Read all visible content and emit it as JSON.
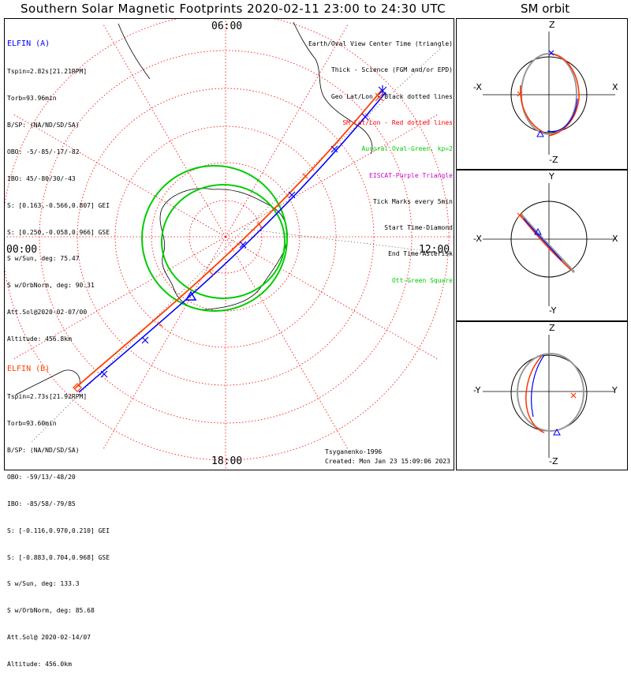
{
  "header": {
    "title": "Southern Solar Magnetic Footprints 2020-02-11 23:00 to 24:30 UTC",
    "orbit_title": "SM orbit"
  },
  "clock_labels": {
    "top": "06:00",
    "left": "00:00",
    "right": "12:00",
    "bottom": "18:00"
  },
  "elfin_a": {
    "name": "ELFIN (A)",
    "color": "#0000ff",
    "lines": [
      "Tspin=2.82s[21.21RPM]",
      "Torb=93.96min",
      "B/SP: (NA/ND/SD/SA)",
      "OBO: -5/-85/-17/-82",
      "IBO: 45/-80/30/-43",
      "S: [0.163,-0.566,0.807] GEI",
      "S: [0.250,-0.058,0.966] GSE",
      "S w/Sun, deg: 75.47",
      "S w/OrbNorm, deg: 90.31",
      "Att.Sol@2020-02-07/00",
      "Altitude: 456.8km"
    ]
  },
  "elfin_b": {
    "name": "ELFIN (B)",
    "color": "#ff4000",
    "lines": [
      "Tspin=2.73s[21.92RPM]",
      "Torb=93.60min",
      "B/SP: (NA/ND/SD/SA)",
      "OBO: -59/13/-48/20",
      "IBO: -85/58/-79/85",
      "S: [-0.116,0.970,0.210] GEI",
      "S: [-0.883,0.704,0.968] GSE",
      "S w/Sun, deg: 133.3",
      "S w/OrbNorm, deg: 85.68",
      "Att.Sol@ 2020-02-14/07",
      "Altitude: 456.0km"
    ]
  },
  "legend": [
    {
      "text": "Earth/Oval View Center Time (triangle)",
      "color": "#000000"
    },
    {
      "text": "Thick - Science (FGM and/or EPD)",
      "color": "#000000"
    },
    {
      "text": "Geo Lat/Lon - Black dotted lines",
      "color": "#000000"
    },
    {
      "text": "SM Lat/Lon - Red dotted lines",
      "color": "#ff0000"
    },
    {
      "text": "Auroral Oval-Green, kp=2",
      "color": "#00cc00"
    },
    {
      "text": "EISCAT-Purple Triangle",
      "color": "#cc00cc"
    },
    {
      "text": "Tick Marks every 5min",
      "color": "#000000"
    },
    {
      "text": "Start Time-Diamond",
      "color": "#000000"
    },
    {
      "text": "End Time-Asterisk",
      "color": "#000000"
    },
    {
      "text": "Ott-Green Square",
      "color": "#00cc00"
    }
  ],
  "credit": {
    "author": "Tsyganenko-1996",
    "created": "Created: Mon Jan 23 15:09:06 2023"
  },
  "orbit_panels": [
    {
      "top": "Z",
      "bottom": "-Z",
      "left": "-X",
      "right": "X"
    },
    {
      "top": "Y",
      "bottom": "-Y",
      "left": "-X",
      "right": "X"
    },
    {
      "top": "Z",
      "bottom": "-Z",
      "left": "-Y",
      "right": "Y"
    }
  ],
  "colors": {
    "a_track": "#0000ff",
    "b_track": "#ff4000",
    "oval": "#00cc00",
    "sm_grid": "#ff0000",
    "geo_grid": "#000000"
  }
}
